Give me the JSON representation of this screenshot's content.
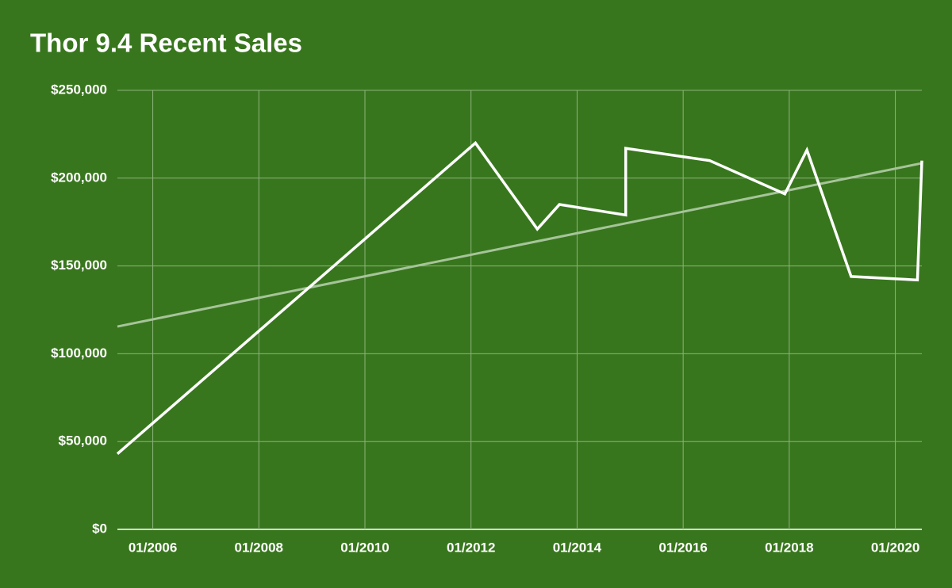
{
  "chart_data": {
    "type": "line",
    "title": "Thor 9.4 Recent Sales",
    "background": "#38761d",
    "grid": true,
    "grid_color": "#8cb27c",
    "x": [
      "05/2005",
      "02/2012",
      "04/2013",
      "09/2013",
      "12/2014",
      "12/2014",
      "07/2016",
      "12/2017",
      "05/2018",
      "03/2019",
      "06/2020",
      "07/2020"
    ],
    "series": [
      {
        "color": "#ffffff",
        "values": [
          43000,
          220000,
          171000,
          185000,
          179000,
          217000,
          210000,
          191000,
          216000,
          144000,
          142000,
          210000
        ]
      }
    ],
    "trendline": {
      "color": "#a6c49a",
      "x": [
        "05/2005",
        "07/2020"
      ],
      "values": [
        115500,
        208500
      ]
    },
    "xlim": [
      "05/2005",
      "07/2020"
    ],
    "xticks": [
      "01/2006",
      "01/2008",
      "01/2010",
      "01/2012",
      "01/2014",
      "01/2016",
      "01/2018",
      "01/2020"
    ],
    "ylim": [
      0,
      250000
    ],
    "yticks": [
      {
        "value": 0,
        "label": "$0"
      },
      {
        "value": 50000,
        "label": "$50,000"
      },
      {
        "value": 100000,
        "label": "$100,000"
      },
      {
        "value": 150000,
        "label": "$150,000"
      },
      {
        "value": 200000,
        "label": "$200,000"
      },
      {
        "value": 250000,
        "label": "$250,000"
      }
    ]
  }
}
